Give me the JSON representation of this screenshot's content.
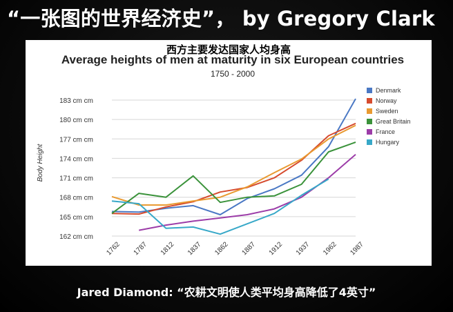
{
  "slide": {
    "title": "“一张图的世界经济史”， by Gregory Clark",
    "overlay_title": "西方主要发达国家人均身高",
    "caption": "Jared Diamond: “农耕文明使人类平均身高降低了4英寸”"
  },
  "chart_data": {
    "type": "line",
    "title": "Average heights of men at maturity in six European countries",
    "subtitle": "1750 - 2000",
    "xlabel": "",
    "ylabel": "Body Height",
    "categories": [
      "1762",
      "1787",
      "1812",
      "1837",
      "1862",
      "1887",
      "1912",
      "1937",
      "1962",
      "1987"
    ],
    "y_tick_labels": [
      "162 cm cm",
      "165 cm cm",
      "168 cm cm",
      "171 cm cm",
      "174 cm cm",
      "177 cm cm",
      "180 cm cm",
      "183 cm cm"
    ],
    "y_ticks": [
      162,
      165,
      168,
      171,
      174,
      177,
      180,
      183
    ],
    "ylim": [
      162,
      183
    ],
    "grid": true,
    "legend_position": "right",
    "series": [
      {
        "name": "Denmark",
        "color": "#4a78c4",
        "values": [
          165.8,
          165.7,
          166.3,
          166.7,
          165.3,
          167.8,
          169.3,
          171.4,
          175.8,
          183.2
        ]
      },
      {
        "name": "Norway",
        "color": "#d64b2e",
        "values": [
          165.5,
          165.4,
          166.5,
          167.3,
          168.8,
          169.5,
          171.0,
          173.7,
          177.5,
          179.4
        ]
      },
      {
        "name": "Sweden",
        "color": "#e99a31",
        "values": [
          168.1,
          166.8,
          166.8,
          167.4,
          168.0,
          169.6,
          171.8,
          173.9,
          177.0,
          179.1
        ]
      },
      {
        "name": "Great Britain",
        "color": "#3a923a",
        "values": [
          165.5,
          168.6,
          168.0,
          171.3,
          167.2,
          168.0,
          168.2,
          170.0,
          175.0,
          176.5
        ]
      },
      {
        "name": "France",
        "color": "#9c3ca8",
        "values": [
          null,
          162.9,
          163.7,
          164.3,
          164.8,
          165.3,
          166.2,
          168.0,
          171.0,
          174.6
        ]
      },
      {
        "name": "Hungary",
        "color": "#37a8c8",
        "values": [
          167.4,
          167.0,
          163.2,
          163.4,
          162.3,
          163.9,
          165.5,
          168.3,
          170.8,
          null
        ]
      }
    ]
  }
}
